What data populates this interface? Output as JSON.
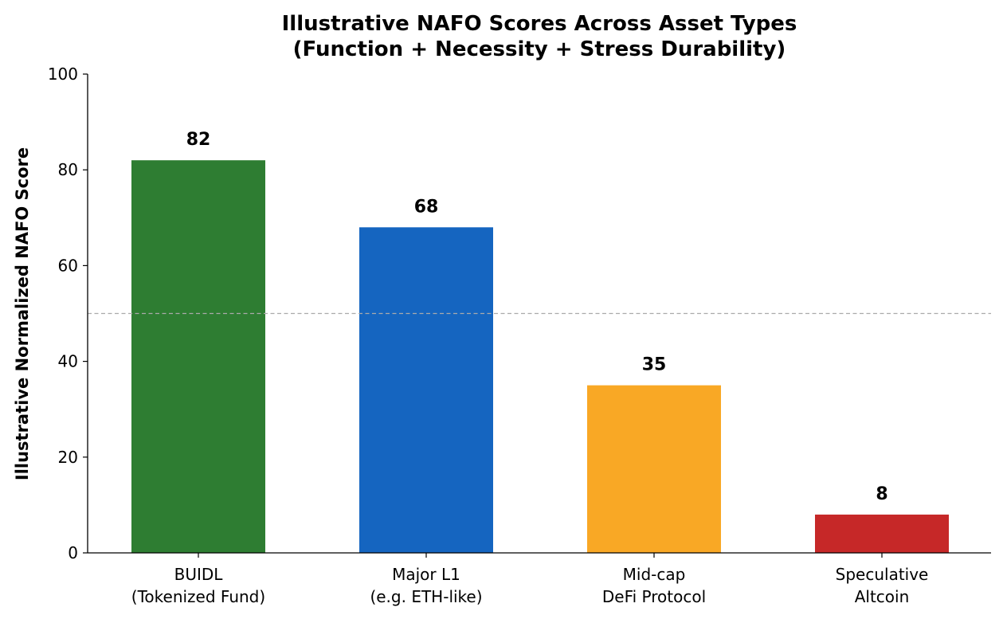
{
  "chart_data": {
    "type": "bar",
    "title": "Illustrative NAFO Scores Across Asset Types",
    "subtitle": "(Function + Necessity + Stress Durability)",
    "xlabel": "",
    "ylabel": "Illustrative Normalized NAFO Score",
    "ylim": [
      0,
      100
    ],
    "yticks": [
      "0",
      "20",
      "40",
      "60",
      "80",
      "100"
    ],
    "categories": [
      [
        "BUIDL",
        "(Tokenized Fund)"
      ],
      [
        "Major L1",
        "(e.g. ETH-like)"
      ],
      [
        "Mid-cap",
        "DeFi Protocol"
      ],
      [
        "Speculative",
        "Altcoin"
      ]
    ],
    "values": [
      82,
      68,
      35,
      8
    ],
    "value_labels": [
      "82",
      "68",
      "35",
      "8"
    ],
    "colors": [
      "#2e7d32",
      "#1565c0",
      "#f9a825",
      "#c62828"
    ],
    "reference_line": {
      "y": 50,
      "style": "dashed",
      "color": "#aaaaaa"
    },
    "grid": false,
    "legend": "none"
  }
}
